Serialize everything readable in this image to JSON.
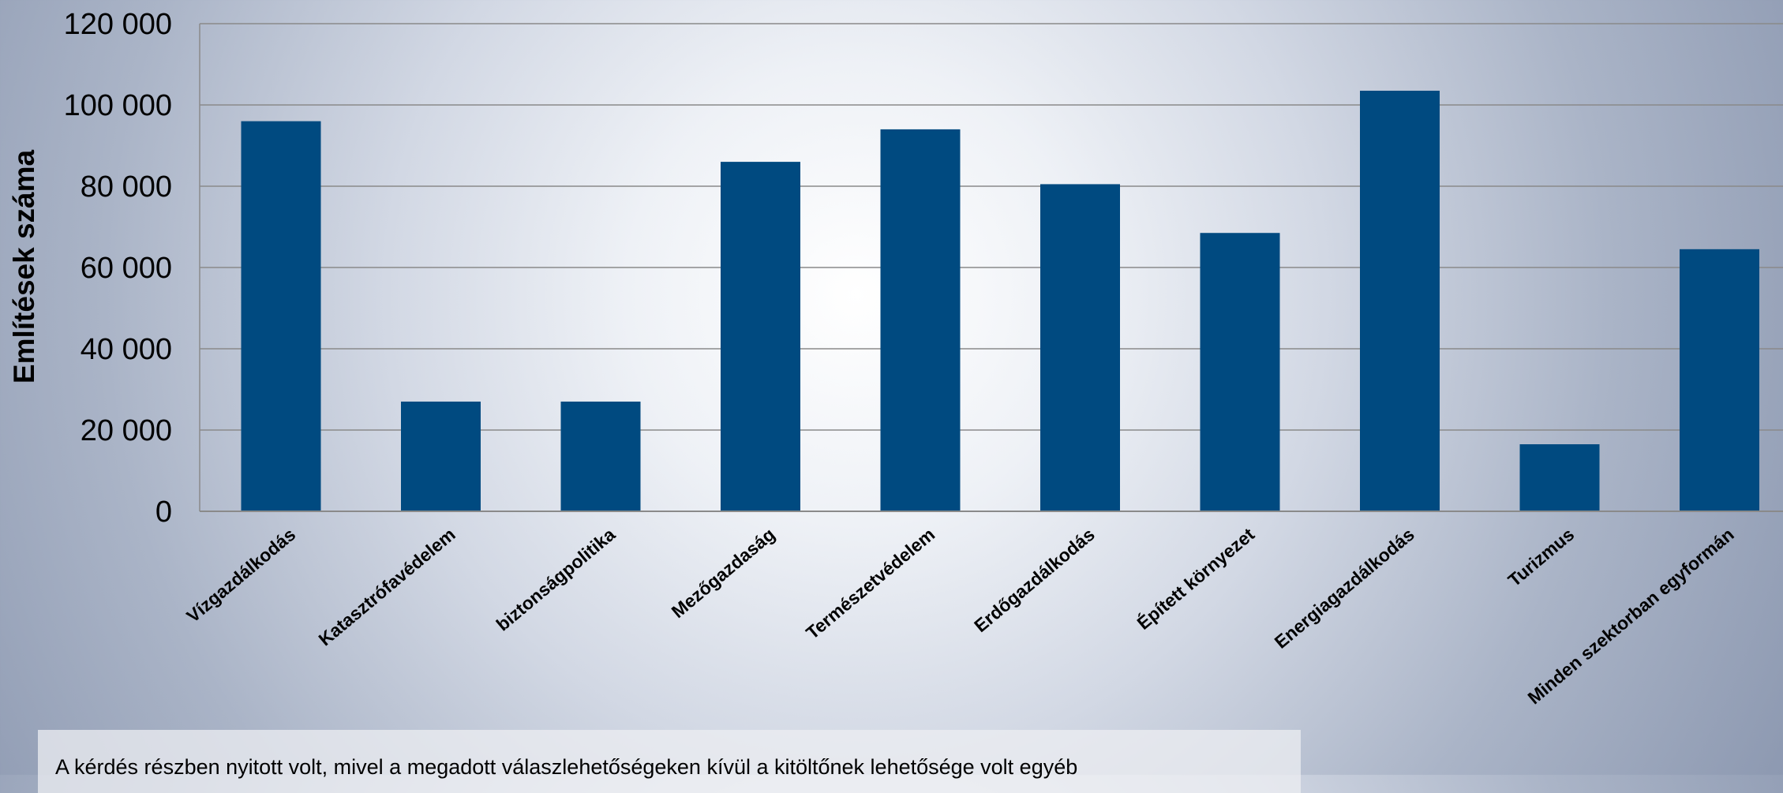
{
  "chart_data": {
    "type": "bar",
    "title": "",
    "xlabel": "",
    "ylabel": "Említések száma",
    "categories": [
      "Vízgazdálkodás",
      "Katasztrófavédelem",
      "biztonságpolitika",
      "Mezőgazdaság",
      "Természetvédelem",
      "Erdőgazdálkodás",
      "Épített környezet",
      "Energiagazdálkodás",
      "Turizmus",
      "Minden szektorban egyformán"
    ],
    "values": [
      96000,
      27000,
      27000,
      86000,
      94000,
      80500,
      68500,
      103500,
      16500,
      64500
    ],
    "ylim": [
      0,
      120000
    ],
    "yticks": [
      0,
      20000,
      40000,
      60000,
      80000,
      100000,
      120000
    ],
    "ytick_labels": [
      "0",
      "20 000",
      "40 000",
      "60 000",
      "80 000",
      "100 000",
      "120 000"
    ],
    "grid": true,
    "bar_color": "#004a80",
    "gridline_color": "#8a8a8a"
  },
  "note": "A kérdés részben nyitott volt, mivel a megadott válaszlehetőségeken kívül a kitöltőnek lehetősége volt egyéb"
}
